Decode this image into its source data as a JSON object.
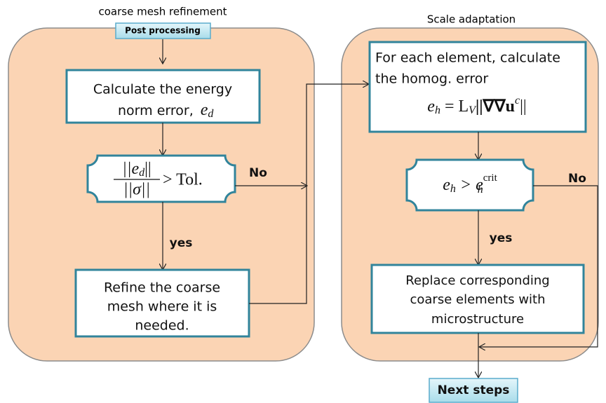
{
  "left": {
    "title": "coarse mesh refinement",
    "start": "Post processing",
    "step1": {
      "lines": [
        "Calculate the energy",
        "norm error,"
      ],
      "symbol": "e",
      "subscript": "d"
    },
    "decision": {
      "num_before": "||e",
      "num_sub": "d",
      "num_after": "||",
      "denominator": "||σ||",
      "relation": "> Tol."
    },
    "no": "No",
    "yes": "yes",
    "step2": {
      "lines": [
        "Refine the coarse",
        "mesh where it is",
        "needed."
      ]
    }
  },
  "right": {
    "title": "Scale adaptation",
    "step1": {
      "lines": [
        "For each element, calculate",
        "the homog. error"
      ],
      "formula": {
        "e": "e",
        "h": "h",
        "eq": "= L",
        "V": "V",
        "norm": "||∇∇",
        "u": "u",
        "c": "c",
        "close": "||"
      }
    },
    "decision": {
      "e": "e",
      "h": "h",
      "gt": "> e",
      "crit": "crit",
      "h2": "h"
    },
    "no": "No",
    "yes": "yes",
    "step2": {
      "lines": [
        "Replace corresponding",
        "coarse elements with",
        "microstructure"
      ]
    },
    "end": "Next steps"
  }
}
